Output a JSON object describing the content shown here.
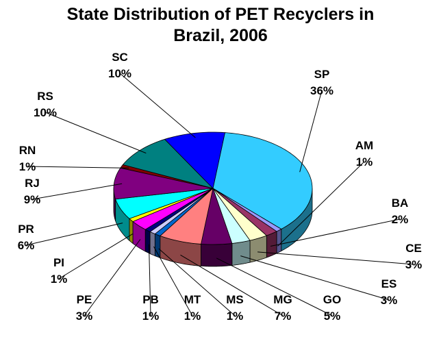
{
  "chart_data": {
    "type": "pie",
    "title_lines": [
      "State Distribution of PET Recyclers in",
      "Brazil, 2006"
    ],
    "start_state": "SP",
    "slices": [
      {
        "label": "SP",
        "value": 36,
        "value_label": "36%",
        "color": "#33ccff"
      },
      {
        "label": "AM",
        "value": 1,
        "value_label": "1%",
        "color": "#9999ff"
      },
      {
        "label": "BA",
        "value": 2,
        "value_label": "2%",
        "color": "#993366"
      },
      {
        "label": "CE",
        "value": 3,
        "value_label": "3%",
        "color": "#ffffcc"
      },
      {
        "label": "ES",
        "value": 3,
        "value_label": "3%",
        "color": "#ccffff"
      },
      {
        "label": "GO",
        "value": 5,
        "value_label": "5%",
        "color": "#660066"
      },
      {
        "label": "MG",
        "value": 7,
        "value_label": "7%",
        "color": "#ff8080"
      },
      {
        "label": "MS",
        "value": 1,
        "value_label": "1%",
        "color": "#0066cc"
      },
      {
        "label": "MT",
        "value": 1,
        "value_label": "1%",
        "color": "#ccccff"
      },
      {
        "label": "PB",
        "value": 1,
        "value_label": "1%",
        "color": "#000080"
      },
      {
        "label": "PE",
        "value": 3,
        "value_label": "3%",
        "color": "#ff00ff"
      },
      {
        "label": "PI",
        "value": 1,
        "value_label": "1%",
        "color": "#ffff00"
      },
      {
        "label": "PR",
        "value": 6,
        "value_label": "6%",
        "color": "#00ffff"
      },
      {
        "label": "RJ",
        "value": 9,
        "value_label": "9%",
        "color": "#800080"
      },
      {
        "label": "RN",
        "value": 1,
        "value_label": "1%",
        "color": "#800000"
      },
      {
        "label": "RS",
        "value": 10,
        "value_label": "10%",
        "color": "#008080"
      },
      {
        "label": "SC",
        "value": 10,
        "value_label": "10%",
        "color": "#0000ff"
      }
    ]
  }
}
